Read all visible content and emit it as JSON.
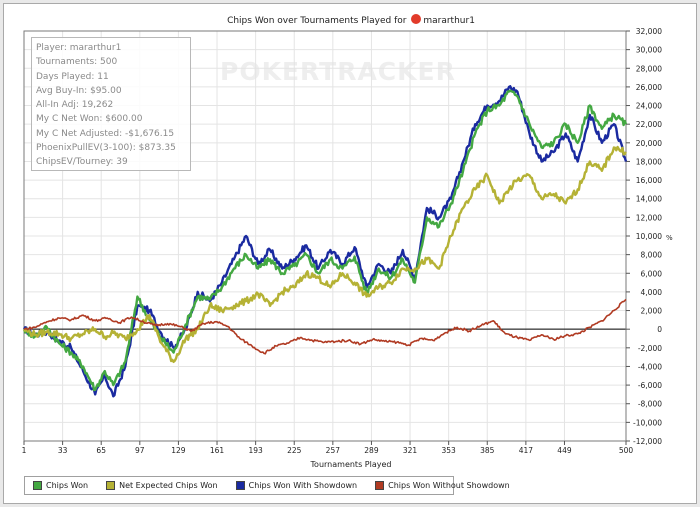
{
  "title_text": "Chips Won over Tournaments Played for",
  "player_name": "mararthur1",
  "watermark": "POKERTRACKER",
  "stats": [
    "Player: mararthur1",
    "Tournaments: 500",
    "Days Played: 11",
    "Avg Buy-In: $95.00",
    "All-In Adj: 19,262",
    "My C Net Won: $600.00",
    "My C Net Adjusted: -$1,676.15",
    "PhoenixPullEV(3-100): $873.35",
    "ChipsEV/Tourney: 39"
  ],
  "chart_data": {
    "type": "line",
    "title": "Chips Won over Tournaments Played for mararthur1",
    "xlabel": "Tournaments Played",
    "ylabel": "%",
    "xlim": [
      1,
      500
    ],
    "ylim": [
      -12000,
      32000
    ],
    "xticks": [
      1,
      33,
      65,
      97,
      129,
      161,
      193,
      225,
      257,
      289,
      321,
      353,
      385,
      417,
      449,
      500
    ],
    "yticks": [
      -12000,
      -10000,
      -8000,
      -6000,
      -4000,
      -2000,
      0,
      2000,
      4000,
      6000,
      8000,
      10000,
      12000,
      14000,
      16000,
      18000,
      20000,
      22000,
      24000,
      26000,
      28000,
      30000,
      32000
    ],
    "ytick_labels": [
      "-12,000",
      "-10,000",
      "-8,000",
      "-6,000",
      "-4,000",
      "-2,000",
      "0",
      "2,000",
      "4,000",
      "6,000",
      "8,000",
      "10,000",
      "12,000",
      "14,000",
      "16,000",
      "18,000",
      "20,000",
      "22,000",
      "24,000",
      "26,000",
      "28,000",
      "30,000",
      "32,000"
    ],
    "grid": true,
    "legend_position": "bottom-left",
    "series": [
      {
        "name": "Chips Won With Showdown",
        "color": "#1a2aa0",
        "x": [
          1,
          10,
          20,
          30,
          40,
          50,
          60,
          68,
          75,
          85,
          95,
          105,
          115,
          125,
          135,
          145,
          155,
          165,
          175,
          185,
          195,
          205,
          215,
          225,
          235,
          245,
          255,
          265,
          275,
          285,
          295,
          305,
          315,
          325,
          335,
          345,
          355,
          365,
          375,
          385,
          395,
          403,
          410,
          420,
          430,
          440,
          450,
          460,
          470,
          480,
          490,
          500
        ],
        "y": [
          0,
          -600,
          -300,
          -1200,
          -2000,
          -4500,
          -7000,
          -5000,
          -7200,
          -4000,
          2500,
          2000,
          -500,
          -2000,
          0,
          4000,
          3000,
          5000,
          7500,
          10000,
          7000,
          8500,
          6500,
          7500,
          9000,
          6500,
          8500,
          7000,
          8800,
          4500,
          7000,
          6000,
          8500,
          5500,
          13000,
          12000,
          14000,
          18000,
          22000,
          24000,
          24500,
          26000,
          25500,
          21000,
          18000,
          19000,
          21000,
          18000,
          23000,
          20000,
          22000,
          18000
        ]
      },
      {
        "name": "Chips Won",
        "color": "#44a842",
        "x": [
          1,
          10,
          20,
          30,
          40,
          50,
          60,
          68,
          75,
          85,
          95,
          105,
          115,
          125,
          135,
          145,
          155,
          165,
          175,
          185,
          195,
          205,
          215,
          225,
          235,
          245,
          255,
          265,
          275,
          285,
          295,
          305,
          315,
          325,
          335,
          345,
          355,
          365,
          375,
          385,
          395,
          403,
          410,
          420,
          430,
          440,
          450,
          460,
          470,
          480,
          490,
          500
        ],
        "y": [
          0,
          -800,
          200,
          -1500,
          -2500,
          -4000,
          -6500,
          -4500,
          -6000,
          -3500,
          3500,
          1000,
          -1000,
          -2500,
          500,
          3500,
          3200,
          4500,
          6500,
          8000,
          6500,
          7500,
          6000,
          6800,
          8000,
          6000,
          7500,
          6500,
          7800,
          3800,
          6500,
          5500,
          7500,
          5000,
          12000,
          11000,
          13500,
          17000,
          21000,
          23500,
          24000,
          25500,
          25000,
          22000,
          19500,
          20000,
          22000,
          20000,
          24000,
          21500,
          23000,
          22000
        ]
      },
      {
        "name": "Net Expected Chips Won",
        "color": "#b5b235",
        "x": [
          1,
          10,
          20,
          30,
          40,
          50,
          60,
          68,
          75,
          85,
          95,
          105,
          115,
          125,
          135,
          145,
          155,
          165,
          175,
          185,
          195,
          205,
          215,
          225,
          235,
          245,
          255,
          265,
          275,
          285,
          295,
          305,
          315,
          325,
          335,
          345,
          355,
          365,
          375,
          385,
          395,
          403,
          410,
          420,
          430,
          440,
          450,
          460,
          470,
          480,
          490,
          500
        ],
        "y": [
          0,
          -600,
          -300,
          -500,
          -1000,
          -500,
          0,
          -800,
          -400,
          -1000,
          0,
          1500,
          -1500,
          -3500,
          -1000,
          0,
          2500,
          2000,
          2500,
          3000,
          3800,
          2500,
          4000,
          4500,
          6000,
          5500,
          4500,
          6000,
          5000,
          3500,
          4500,
          5000,
          6500,
          6500,
          7500,
          6500,
          10000,
          13000,
          15000,
          16500,
          13500,
          15000,
          16000,
          16500,
          14000,
          14500,
          13500,
          15000,
          18000,
          17000,
          19500,
          19000
        ]
      },
      {
        "name": "Chips Won Without Showdown",
        "color": "#b03a22",
        "x": [
          1,
          10,
          20,
          30,
          40,
          50,
          60,
          70,
          80,
          90,
          100,
          110,
          120,
          130,
          140,
          150,
          160,
          170,
          180,
          190,
          200,
          210,
          220,
          230,
          240,
          250,
          260,
          270,
          280,
          290,
          300,
          310,
          320,
          330,
          340,
          350,
          360,
          370,
          380,
          390,
          400,
          410,
          420,
          430,
          440,
          450,
          460,
          470,
          480,
          490,
          500
        ],
        "y": [
          0,
          200,
          800,
          1200,
          1000,
          1500,
          900,
          1200,
          700,
          1300,
          800,
          400,
          600,
          300,
          -200,
          600,
          800,
          300,
          -1000,
          -1800,
          -2600,
          -1800,
          -1500,
          -900,
          -1200,
          -1400,
          -1300,
          -1200,
          -1600,
          -1100,
          -1300,
          -1400,
          -1700,
          -1000,
          -1200,
          -400,
          200,
          -200,
          400,
          900,
          -500,
          -900,
          -1200,
          -600,
          -1100,
          -700,
          -500,
          200,
          900,
          2000,
          3200
        ]
      }
    ],
    "legend_order": [
      "Chips Won",
      "Net Expected Chips Won",
      "Chips Won With Showdown",
      "Chips Won Without Showdown"
    ]
  }
}
